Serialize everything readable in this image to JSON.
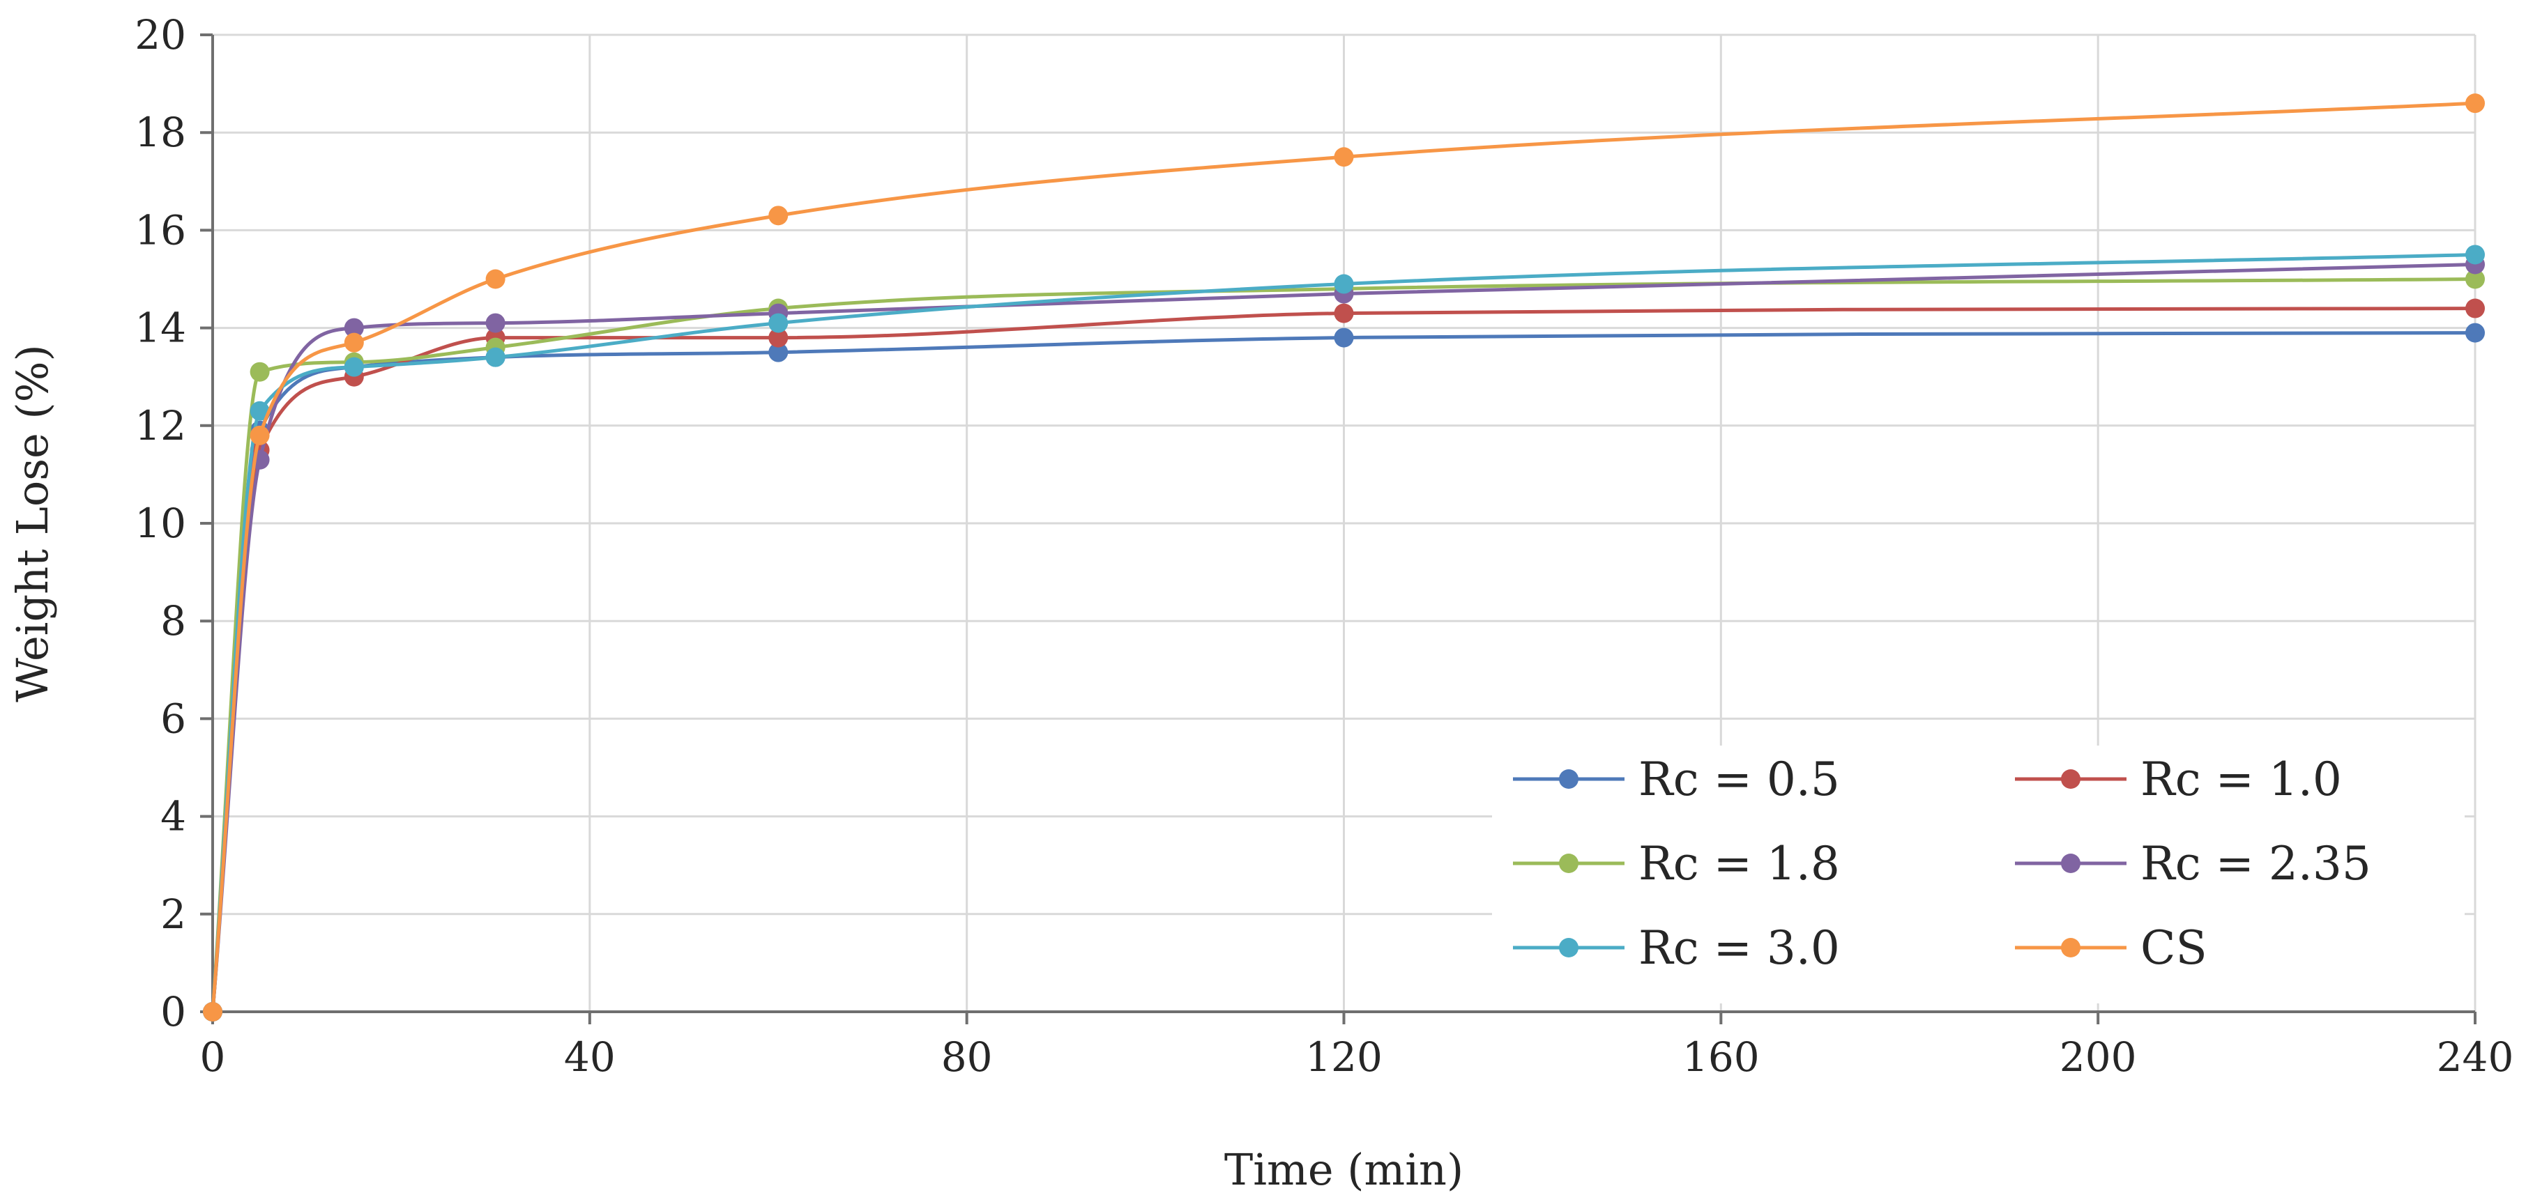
{
  "chart_data": {
    "type": "line",
    "title": "",
    "xlabel": "Time (min)",
    "ylabel": "Weight Lose (%)",
    "xlim": [
      0,
      240
    ],
    "ylim": [
      0,
      20
    ],
    "xticks": [
      0,
      40,
      80,
      120,
      160,
      200,
      240
    ],
    "yticks": [
      0,
      2,
      4,
      6,
      8,
      10,
      12,
      14,
      16,
      18,
      20
    ],
    "grid": true,
    "smooth": true,
    "legend_position": "bottom-right",
    "x": [
      0,
      5,
      15,
      30,
      60,
      120,
      240
    ],
    "series": [
      {
        "name": "Rc = 0.5",
        "color": "#4e79b9",
        "values": [
          0,
          11.9,
          13.2,
          13.4,
          13.5,
          13.8,
          13.9
        ]
      },
      {
        "name": "Rc = 1.0",
        "color": "#c0504d",
        "values": [
          0,
          11.5,
          13.0,
          13.8,
          13.8,
          14.3,
          14.4
        ]
      },
      {
        "name": "Rc = 1.8",
        "color": "#9bbb59",
        "values": [
          0,
          13.1,
          13.3,
          13.6,
          14.4,
          14.8,
          15.0
        ]
      },
      {
        "name": "Rc = 2.35",
        "color": "#8064a2",
        "values": [
          0,
          11.3,
          14.0,
          14.1,
          14.3,
          14.7,
          15.3
        ]
      },
      {
        "name": "Rc = 3.0",
        "color": "#4bacc6",
        "values": [
          0,
          12.3,
          13.2,
          13.4,
          14.1,
          14.9,
          15.5
        ]
      },
      {
        "name": "CS",
        "color": "#f79646",
        "values": [
          0,
          11.8,
          13.7,
          15.0,
          16.3,
          17.5,
          18.6
        ]
      }
    ]
  }
}
